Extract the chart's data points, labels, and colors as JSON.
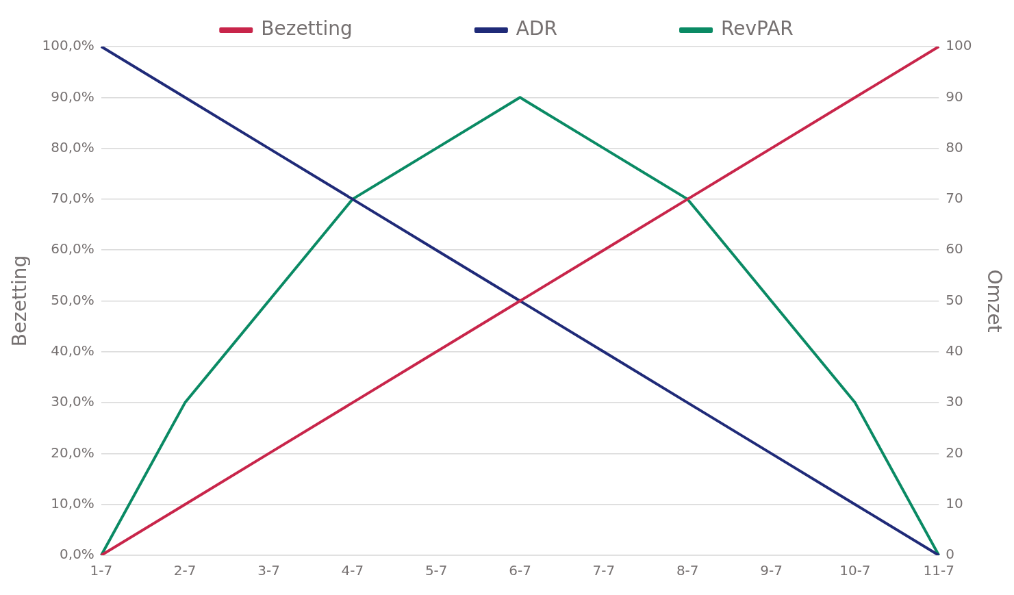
{
  "chart_data": {
    "type": "line",
    "ylabel": "Bezetting",
    "y2label": "Omzet",
    "categories": [
      "1-7",
      "2-7",
      "3-7",
      "4-7",
      "5-7",
      "6-7",
      "7-7",
      "8-7",
      "9-7",
      "10-7",
      "11-7"
    ],
    "series": [
      {
        "name": "Bezetting",
        "color": "#c8254a",
        "values": [
          0,
          10,
          20,
          30,
          40,
          50,
          60,
          70,
          80,
          90,
          100
        ]
      },
      {
        "name": "ADR",
        "color": "#1f2a78",
        "values": [
          100,
          90,
          80,
          70,
          60,
          50,
          40,
          30,
          20,
          10,
          0
        ]
      },
      {
        "name": "RevPAR",
        "color": "#0a8a64",
        "values": [
          0,
          30,
          50,
          70,
          80,
          90,
          80,
          70,
          50,
          30,
          0
        ]
      }
    ],
    "ylim": [
      0,
      100
    ],
    "yticks": [
      {
        "value": 0,
        "label": "0,0%"
      },
      {
        "value": 10,
        "label": "10,0%"
      },
      {
        "value": 20,
        "label": "20,0%"
      },
      {
        "value": 30,
        "label": "30,0%"
      },
      {
        "value": 40,
        "label": "40,0%"
      },
      {
        "value": 50,
        "label": "50,0%"
      },
      {
        "value": 60,
        "label": "60,0%"
      },
      {
        "value": 70,
        "label": "70,0%"
      },
      {
        "value": 80,
        "label": "80,0%"
      },
      {
        "value": 90,
        "label": "90,0%"
      },
      {
        "value": 100,
        "label": "100,0%"
      }
    ],
    "y2lim": [
      0,
      100
    ],
    "y2ticks": [
      0,
      10,
      20,
      30,
      40,
      50,
      60,
      70,
      80,
      90,
      100
    ],
    "grid": "y",
    "legend": "top",
    "marker": "none",
    "line_style": "solid"
  }
}
